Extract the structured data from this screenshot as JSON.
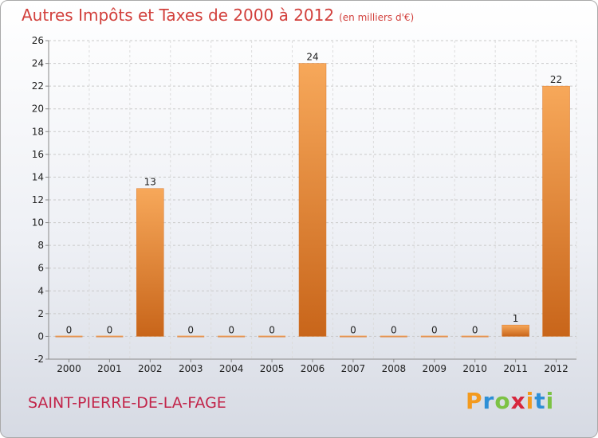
{
  "title": "Autres Impôts et Taxes de 2000 à 2012",
  "subtitle": "(en milliers d'€)",
  "commune": "SAINT-PIERRE-DE-LA-FAGE",
  "logo": {
    "letters": [
      "P",
      "r",
      "o",
      "x",
      "i",
      "t",
      "i"
    ],
    "colors": [
      "#f39a1e",
      "#2d8fd6",
      "#7cc244",
      "#d7263d",
      "#f39a1e",
      "#2d8fd6",
      "#7cc244"
    ]
  },
  "chart_data": {
    "type": "bar",
    "categories": [
      "2000",
      "2001",
      "2002",
      "2003",
      "2004",
      "2005",
      "2006",
      "2007",
      "2008",
      "2009",
      "2010",
      "2011",
      "2012"
    ],
    "values": [
      0,
      0,
      13,
      0,
      0,
      0,
      24,
      0,
      0,
      0,
      0,
      1,
      22
    ],
    "ylim": [
      -2,
      26
    ],
    "yticks": [
      -2,
      0,
      2,
      4,
      6,
      8,
      10,
      12,
      14,
      16,
      18,
      20,
      22,
      24,
      26
    ],
    "grid": "horizontal dashed",
    "bar_color": "#f0862a"
  }
}
